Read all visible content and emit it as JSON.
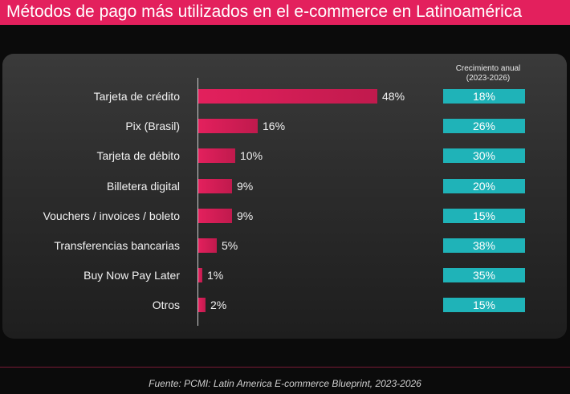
{
  "title": "Métodos de pago más utilizados en el e-commerce en Latinoamérica",
  "growth_header": [
    "Crecimiento anual",
    "(2023-2026)"
  ],
  "source": "Fuente: PCMI: Latin America E-commerce Blueprint, 2023-2026",
  "colors": {
    "header": "#e3205d",
    "bar": "#e3205d",
    "growth_box": "#1fb3b8",
    "background": "#0b0b0b",
    "panel": "#333333"
  },
  "chart_data": {
    "type": "bar",
    "orientation": "horizontal",
    "categories": [
      "Tarjeta de crédito",
      "Pix (Brasil)",
      "Tarjeta de débito",
      "Billetera digital",
      "Vouchers / invoices / boleto",
      "Transferencias bancarias",
      "Buy Now Pay Later",
      "Otros"
    ],
    "values": [
      48,
      16,
      10,
      9,
      9,
      5,
      1,
      2
    ],
    "value_labels": [
      "48%",
      "16%",
      "10%",
      "9%",
      "9%",
      "5%",
      "1%",
      "2%"
    ],
    "unit": "%",
    "xlim": [
      0,
      50
    ],
    "growth": {
      "label": "Crecimiento anual (2023-2026)",
      "values": [
        18,
        26,
        30,
        20,
        15,
        38,
        35,
        15
      ],
      "labels": [
        "18%",
        "26%",
        "30%",
        "20%",
        "15%",
        "38%",
        "35%",
        "15%"
      ]
    },
    "grid": false,
    "legend": "none"
  }
}
